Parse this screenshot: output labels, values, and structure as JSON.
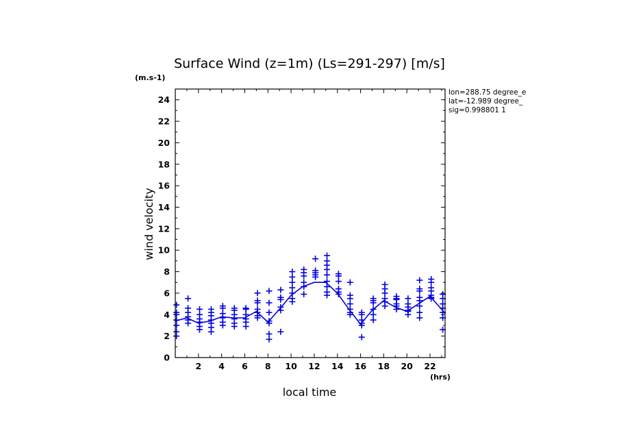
{
  "chart_data": {
    "type": "scatter",
    "title": "Surface Wind (z=1m) (Ls=291-297) [m/s]",
    "ylabel": "wind velocity",
    "y_unit": "(m.s-1)",
    "xlabel": "local time",
    "x_unit": "(hrs)",
    "xlim": [
      0,
      23.3
    ],
    "ylim": [
      0,
      25
    ],
    "x_ticks": [
      "2",
      "4",
      "6",
      "8",
      "10",
      "12",
      "14",
      "16",
      "18",
      "20",
      "22"
    ],
    "y_ticks": [
      "0",
      "2",
      "4",
      "6",
      "8",
      "10",
      "12",
      "14",
      "16",
      "18",
      "20",
      "22",
      "24"
    ],
    "info": [
      "lon=288.75 degree_e",
      "lat=-12.989 degree_",
      "sig=0.998801 1"
    ],
    "colors": {
      "series": "#0000dd",
      "frame": "#000000"
    },
    "series": [
      {
        "marker": "plus",
        "points": [
          [
            0.1,
            4.9
          ],
          [
            0.1,
            4.2
          ],
          [
            0.1,
            4.0
          ],
          [
            0.1,
            3.5
          ],
          [
            0.1,
            3.0
          ],
          [
            0.1,
            2.4
          ],
          [
            0.1,
            2.0
          ],
          [
            1.1,
            5.5
          ],
          [
            1.1,
            4.6
          ],
          [
            1.1,
            4.2
          ],
          [
            1.1,
            3.8
          ],
          [
            1.1,
            3.5
          ],
          [
            1.1,
            3.2
          ],
          [
            2.1,
            4.5
          ],
          [
            2.1,
            4.0
          ],
          [
            2.1,
            3.6
          ],
          [
            2.1,
            3.3
          ],
          [
            2.1,
            2.9
          ],
          [
            2.1,
            2.6
          ],
          [
            3.1,
            4.5
          ],
          [
            3.1,
            4.2
          ],
          [
            3.1,
            3.9
          ],
          [
            3.1,
            3.5
          ],
          [
            3.1,
            3.2
          ],
          [
            3.1,
            2.8
          ],
          [
            3.1,
            2.4
          ],
          [
            4.1,
            4.8
          ],
          [
            4.1,
            4.6
          ],
          [
            4.1,
            4.1
          ],
          [
            4.1,
            3.7
          ],
          [
            4.1,
            3.3
          ],
          [
            4.1,
            3.0
          ],
          [
            5.1,
            4.6
          ],
          [
            5.1,
            4.4
          ],
          [
            5.1,
            4.0
          ],
          [
            5.1,
            3.6
          ],
          [
            5.1,
            3.2
          ],
          [
            5.1,
            2.9
          ],
          [
            6.1,
            4.6
          ],
          [
            6.1,
            4.5
          ],
          [
            6.1,
            4.0
          ],
          [
            6.1,
            3.6
          ],
          [
            6.1,
            3.3
          ],
          [
            6.1,
            2.9
          ],
          [
            7.1,
            6.0
          ],
          [
            7.1,
            5.3
          ],
          [
            7.1,
            5.1
          ],
          [
            7.1,
            4.5
          ],
          [
            7.1,
            4.2
          ],
          [
            7.1,
            3.9
          ],
          [
            7.1,
            3.7
          ],
          [
            8.1,
            6.2
          ],
          [
            8.1,
            5.1
          ],
          [
            8.1,
            4.2
          ],
          [
            8.1,
            3.4
          ],
          [
            8.1,
            3.2
          ],
          [
            8.1,
            2.2
          ],
          [
            8.1,
            1.7
          ],
          [
            9.1,
            6.3
          ],
          [
            9.1,
            5.6
          ],
          [
            9.1,
            5.4
          ],
          [
            9.1,
            4.7
          ],
          [
            9.1,
            4.4
          ],
          [
            9.1,
            2.4
          ],
          [
            10.1,
            8.0
          ],
          [
            10.1,
            7.5
          ],
          [
            10.1,
            7.0
          ],
          [
            10.1,
            6.5
          ],
          [
            10.1,
            6.0
          ],
          [
            10.1,
            5.5
          ],
          [
            10.1,
            5.2
          ],
          [
            11.1,
            8.2
          ],
          [
            11.1,
            7.9
          ],
          [
            11.1,
            7.6
          ],
          [
            11.1,
            7.0
          ],
          [
            11.1,
            6.6
          ],
          [
            11.1,
            5.9
          ],
          [
            12.1,
            9.2
          ],
          [
            12.1,
            8.1
          ],
          [
            12.1,
            7.9
          ],
          [
            12.1,
            7.7
          ],
          [
            12.1,
            7.5
          ],
          [
            13.1,
            9.5
          ],
          [
            13.1,
            9.0
          ],
          [
            13.1,
            8.6
          ],
          [
            13.1,
            8.2
          ],
          [
            13.1,
            7.7
          ],
          [
            13.1,
            7.1
          ],
          [
            13.1,
            6.6
          ],
          [
            13.1,
            6.1
          ],
          [
            13.1,
            5.8
          ],
          [
            14.1,
            7.8
          ],
          [
            14.1,
            7.6
          ],
          [
            14.1,
            7.1
          ],
          [
            14.1,
            6.4
          ],
          [
            14.1,
            6.1
          ],
          [
            14.1,
            5.9
          ],
          [
            15.1,
            7.0
          ],
          [
            15.1,
            5.8
          ],
          [
            15.1,
            5.5
          ],
          [
            15.1,
            5.0
          ],
          [
            15.1,
            4.5
          ],
          [
            15.1,
            4.2
          ],
          [
            15.1,
            4.0
          ],
          [
            16.1,
            4.2
          ],
          [
            16.1,
            4.0
          ],
          [
            16.1,
            3.5
          ],
          [
            16.1,
            3.2
          ],
          [
            16.1,
            3.0
          ],
          [
            16.1,
            1.9
          ],
          [
            17.1,
            5.5
          ],
          [
            17.1,
            5.3
          ],
          [
            17.1,
            5.1
          ],
          [
            17.1,
            4.5
          ],
          [
            17.1,
            4.0
          ],
          [
            17.1,
            3.5
          ],
          [
            18.1,
            6.8
          ],
          [
            18.1,
            6.4
          ],
          [
            18.1,
            6.0
          ],
          [
            18.1,
            5.5
          ],
          [
            18.1,
            5.2
          ],
          [
            18.1,
            4.8
          ],
          [
            19.1,
            5.7
          ],
          [
            19.1,
            5.5
          ],
          [
            19.1,
            5.4
          ],
          [
            19.1,
            5.0
          ],
          [
            19.1,
            4.8
          ],
          [
            19.1,
            4.5
          ],
          [
            20.1,
            5.5
          ],
          [
            20.1,
            5.0
          ],
          [
            20.1,
            4.7
          ],
          [
            20.1,
            4.4
          ],
          [
            20.1,
            4.3
          ],
          [
            20.1,
            4.0
          ],
          [
            21.1,
            7.2
          ],
          [
            21.1,
            6.4
          ],
          [
            21.1,
            6.2
          ],
          [
            21.1,
            5.6
          ],
          [
            21.1,
            5.3
          ],
          [
            21.1,
            4.8
          ],
          [
            21.1,
            4.2
          ],
          [
            21.1,
            3.7
          ],
          [
            22.1,
            7.3
          ],
          [
            22.1,
            7.0
          ],
          [
            22.1,
            6.5
          ],
          [
            22.1,
            6.2
          ],
          [
            22.1,
            5.8
          ],
          [
            22.1,
            5.6
          ],
          [
            22.1,
            5.5
          ],
          [
            23.1,
            5.9
          ],
          [
            23.1,
            5.5
          ],
          [
            23.1,
            5.0
          ],
          [
            23.1,
            4.6
          ],
          [
            23.1,
            4.2
          ],
          [
            23.1,
            3.7
          ],
          [
            23.1,
            2.6
          ]
        ]
      },
      {
        "marker": "line",
        "points": [
          [
            0.0,
            3.4
          ],
          [
            1.0,
            3.7
          ],
          [
            2.0,
            3.2
          ],
          [
            3.0,
            3.4
          ],
          [
            4.0,
            3.8
          ],
          [
            5.0,
            3.7
          ],
          [
            6.0,
            3.7
          ],
          [
            7.0,
            4.3
          ],
          [
            8.0,
            3.3
          ],
          [
            9.0,
            4.5
          ],
          [
            10.0,
            5.8
          ],
          [
            11.0,
            6.6
          ],
          [
            12.0,
            7.0
          ],
          [
            13.0,
            7.0
          ],
          [
            14.0,
            6.0
          ],
          [
            15.0,
            4.5
          ],
          [
            16.0,
            3.1
          ],
          [
            17.0,
            4.4
          ],
          [
            18.0,
            5.3
          ],
          [
            19.0,
            4.7
          ],
          [
            20.0,
            4.3
          ],
          [
            21.0,
            5.0
          ],
          [
            22.0,
            5.7
          ],
          [
            23.0,
            4.5
          ],
          [
            23.3,
            4.1
          ]
        ]
      }
    ]
  }
}
